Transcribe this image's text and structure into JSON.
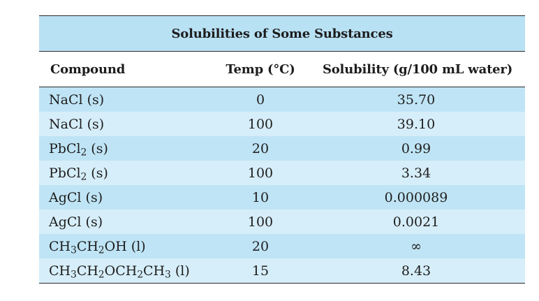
{
  "table": {
    "title": "Solubilities of Some Substances",
    "columns": [
      "Compound",
      "Temp (°C)",
      "Solubility (g/100 mL water)"
    ],
    "rows": [
      {
        "compound": [
          {
            "t": "NaCl (s)"
          }
        ],
        "temp": "0",
        "solubility": "35.70"
      },
      {
        "compound": [
          {
            "t": "NaCl (s)"
          }
        ],
        "temp": "100",
        "solubility": "39.10"
      },
      {
        "compound": [
          {
            "t": "PbCl"
          },
          {
            "sub": "2"
          },
          {
            "t": " (s)"
          }
        ],
        "temp": "20",
        "solubility": "0.99"
      },
      {
        "compound": [
          {
            "t": "PbCl"
          },
          {
            "sub": "2"
          },
          {
            "t": " (s)"
          }
        ],
        "temp": "100",
        "solubility": "3.34"
      },
      {
        "compound": [
          {
            "t": "AgCl (s)"
          }
        ],
        "temp": "10",
        "solubility": "0.000089"
      },
      {
        "compound": [
          {
            "t": "AgCl (s)"
          }
        ],
        "temp": "100",
        "solubility": "0.0021"
      },
      {
        "compound": [
          {
            "t": "CH"
          },
          {
            "sub": "3"
          },
          {
            "t": "CH"
          },
          {
            "sub": "2"
          },
          {
            "t": "OH (l)"
          }
        ],
        "temp": "20",
        "solubility": "∞"
      },
      {
        "compound": [
          {
            "t": "CH"
          },
          {
            "sub": "3"
          },
          {
            "t": "CH"
          },
          {
            "sub": "2"
          },
          {
            "t": "OCH"
          },
          {
            "sub": "2"
          },
          {
            "t": "CH"
          },
          {
            "sub": "3"
          },
          {
            "t": " (l)"
          }
        ],
        "temp": "15",
        "solubility": "8.43"
      }
    ]
  },
  "colors": {
    "title_background": "#b9e1f4",
    "row_dark": "#bfe4f5",
    "row_light": "#d6eef9",
    "rule": "#2a2a2a"
  }
}
